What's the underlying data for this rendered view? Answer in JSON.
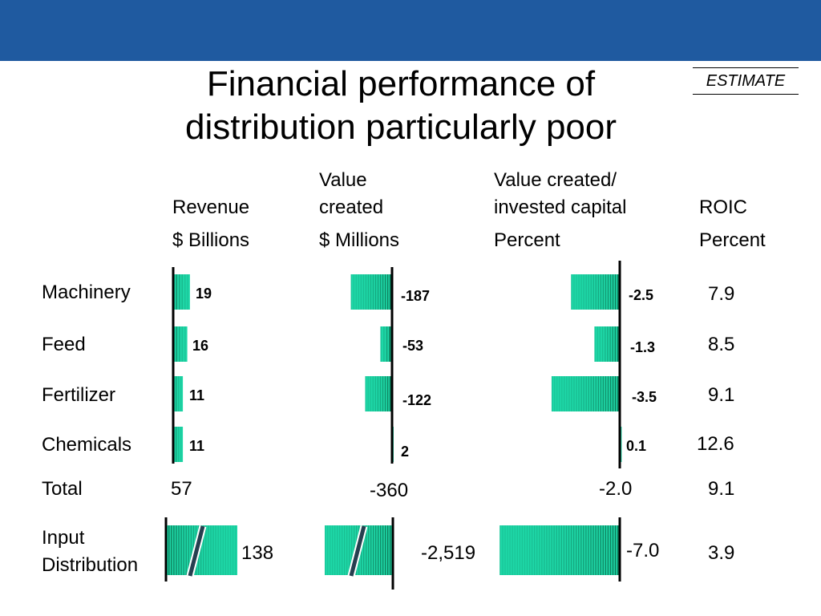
{
  "title_line1": "Financial performance of",
  "title_line2": "distribution particularly poor",
  "stamp": "ESTIMATE",
  "colors": {
    "header_band": "#1f5aa0",
    "bar_light": "#1ed8a8",
    "bar_dark": "#0a6a4a",
    "axis": "#000000",
    "break_mark": "#263f4f"
  },
  "chart_data": [
    {
      "type": "bar",
      "title": "Revenue",
      "unit": "$ Billions",
      "categories": [
        "Machinery",
        "Feed",
        "Fertilizer",
        "Chemicals"
      ],
      "values": [
        19,
        16,
        11,
        11
      ],
      "labels": [
        "19",
        "16",
        "11",
        "11"
      ],
      "total": "57",
      "input_distribution": {
        "value": 138,
        "label": "138",
        "axis_break": true
      }
    },
    {
      "type": "bar",
      "title": "Value created",
      "unit": "$ Millions",
      "categories": [
        "Machinery",
        "Feed",
        "Fertilizer",
        "Chemicals"
      ],
      "values": [
        -187,
        -53,
        -122,
        2
      ],
      "labels": [
        "-187",
        "-53",
        "-122",
        "2"
      ],
      "total": "-360",
      "input_distribution": {
        "value": -2519,
        "label": "-2,519",
        "axis_break": true
      }
    },
    {
      "type": "bar",
      "title": "Value created/ invested capital",
      "unit": "Percent",
      "categories": [
        "Machinery",
        "Feed",
        "Fertilizer",
        "Chemicals"
      ],
      "values": [
        -2.5,
        -1.3,
        -3.5,
        0.1
      ],
      "labels": [
        "-2.5",
        "-1.3",
        "-3.5",
        "0.1"
      ],
      "total": "-2.0",
      "input_distribution": {
        "value": -7.0,
        "label": "-7.0",
        "axis_break": false
      }
    },
    {
      "type": "table",
      "title": "ROIC",
      "unit": "Percent",
      "categories": [
        "Machinery",
        "Feed",
        "Fertilizer",
        "Chemicals",
        "Total",
        "Input Distribution"
      ],
      "values": [
        "7.9",
        "8.5",
        "9.1",
        "12.6",
        "9.1",
        "3.9"
      ]
    }
  ],
  "headers": {
    "revenue": "Revenue",
    "value_created_l1": "Value",
    "value_created_l2": "created",
    "vc_ratio_l1": "Value created/",
    "vc_ratio_l2": "invested capital",
    "roic": "ROIC"
  },
  "units": {
    "revenue": "$ Billions",
    "value_created": "$ Millions",
    "vc_ratio": "Percent",
    "roic": "Percent"
  },
  "rows": {
    "machinery": "Machinery",
    "feed": "Feed",
    "fertilizer": "Fertilizer",
    "chemicals": "Chemicals",
    "total": "Total",
    "input_l1": "Input",
    "input_l2": "Distribution"
  }
}
